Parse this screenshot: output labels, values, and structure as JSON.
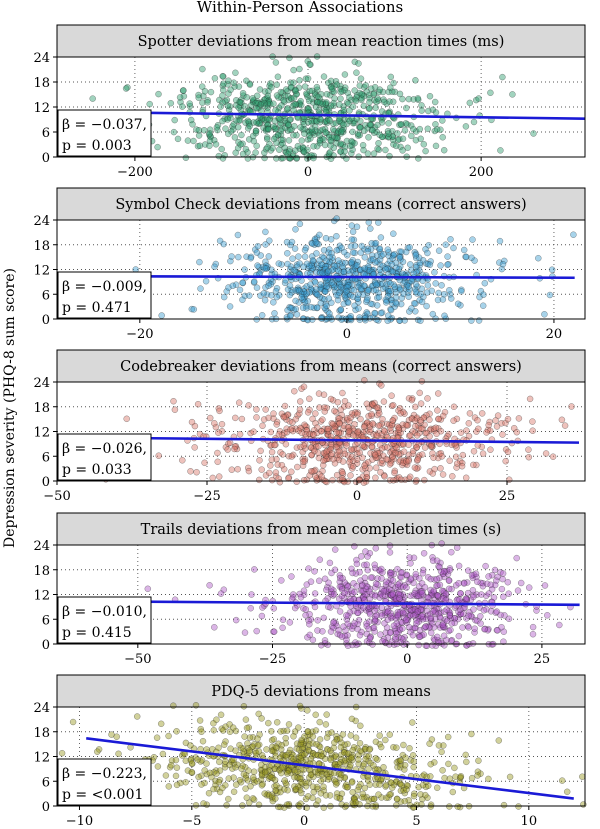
{
  "figure_title": "Within-Person Associations",
  "shared_ylabel": "Depression severity (PHQ-8 sum score)",
  "chart_data": [
    {
      "type": "scatter",
      "title": "Spotter deviations from mean reaction times (ms)",
      "xlim": [
        -290,
        320
      ],
      "ylim": [
        0,
        24
      ],
      "xticks": [
        -200,
        0,
        200
      ],
      "yticks": [
        0,
        6,
        12,
        18,
        24
      ],
      "color": "#2e9e6e",
      "x_spread": 70,
      "x_center": 0,
      "regression": {
        "x": [
          -290,
          320
        ],
        "y": [
          10.9,
          9.2
        ]
      },
      "stat_beta": "β = −0.037,",
      "stat_p": "p = 0.003"
    },
    {
      "type": "scatter",
      "title": "Symbol Check deviations from means (correct answers)",
      "xlim": [
        -28,
        23
      ],
      "ylim": [
        0,
        24
      ],
      "xticks": [
        -20,
        0,
        20
      ],
      "yticks": [
        0,
        6,
        12,
        18,
        24
      ],
      "color": "#3b9ed0",
      "x_spread": 5,
      "x_center": 0,
      "regression": {
        "x": [
          -28,
          22
        ],
        "y": [
          10.4,
          10.0
        ]
      },
      "stat_beta": "β = −0.009,",
      "stat_p": "p = 0.471"
    },
    {
      "type": "scatter",
      "title": "Codebreaker deviations from means (correct answers)",
      "xlim": [
        -50,
        38
      ],
      "ylim": [
        0,
        24
      ],
      "xticks": [
        -50,
        -25,
        0,
        25
      ],
      "yticks": [
        0,
        6,
        12,
        18,
        24
      ],
      "color": "#d9776a",
      "x_spread": 11,
      "x_center": 0,
      "regression": {
        "x": [
          -50,
          37
        ],
        "y": [
          10.6,
          9.3
        ]
      },
      "stat_beta": "β = −0.026,",
      "stat_p": "p = 0.033"
    },
    {
      "type": "scatter",
      "title": "Trails deviations from mean completion times (s)",
      "xlim": [
        -65,
        33
      ],
      "ylim": [
        0,
        24
      ],
      "xticks": [
        -50,
        -25,
        0,
        25
      ],
      "yticks": [
        0,
        6,
        12,
        18,
        24
      ],
      "color": "#b05cc8",
      "x_spread": 9,
      "x_center": -1,
      "regression": {
        "x": [
          -65,
          32
        ],
        "y": [
          10.4,
          9.5
        ]
      },
      "stat_beta": "β = −0.010,",
      "stat_p": "p = 0.415"
    },
    {
      "type": "scatter",
      "title": "PDQ-5 deviations from means",
      "xlim": [
        -11,
        12.5
      ],
      "ylim": [
        0,
        24
      ],
      "xticks": [
        -10,
        -5,
        0,
        5,
        10
      ],
      "yticks": [
        0,
        6,
        12,
        18,
        24
      ],
      "color": "#9a9a22",
      "x_spread": 3,
      "x_center": 0,
      "regression": {
        "x": [
          -9.7,
          12
        ],
        "y": [
          16.4,
          1.8
        ]
      },
      "stat_beta": "β = −0.223,",
      "stat_p": "p = <0.001"
    }
  ]
}
